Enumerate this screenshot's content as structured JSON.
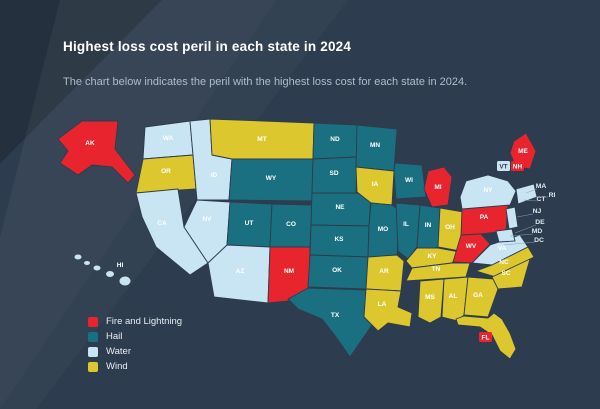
{
  "title": "Highest loss cost peril in each state in 2024",
  "subtitle": "The chart below indicates the peril with the highest loss cost for each state in 2024.",
  "colors": {
    "background": "#2d3c4e",
    "fire": "#e8252f",
    "hail": "#1a7080",
    "water": "#c9e4f2",
    "wind": "#ddc72e",
    "title_text": "#ffffff",
    "subtitle_text": "#aebdcb",
    "state_label_text": "#ffffff",
    "offmap_label_text": "#dfe8f0"
  },
  "legend": {
    "items": [
      {
        "label": "Fire and Lightning",
        "key": "fire"
      },
      {
        "label": "Hail",
        "key": "hail"
      },
      {
        "label": "Water",
        "key": "water"
      },
      {
        "label": "Wind",
        "key": "wind"
      }
    ]
  },
  "chart_data": {
    "type": "choropleth_map",
    "title": "Highest loss cost peril in each state in 2024",
    "subtitle": "The chart below indicates the peril with the highest loss cost for each state in 2024.",
    "legend_position": "bottom-left",
    "categories": {
      "fire": {
        "label": "Fire and Lightning",
        "color": "#e8252f"
      },
      "hail": {
        "label": "Hail",
        "color": "#1a7080"
      },
      "water": {
        "label": "Water",
        "color": "#c9e4f2"
      },
      "wind": {
        "label": "Wind",
        "color": "#ddc72e"
      }
    },
    "states": [
      {
        "id": "AK",
        "label": "AK",
        "category": "fire"
      },
      {
        "id": "HI",
        "label": "HI",
        "category": "water"
      },
      {
        "id": "WA",
        "label": "WA",
        "category": "water"
      },
      {
        "id": "OR",
        "label": "OR",
        "category": "wind"
      },
      {
        "id": "CA",
        "label": "CA",
        "category": "water"
      },
      {
        "id": "ID",
        "label": "ID",
        "category": "water"
      },
      {
        "id": "NV",
        "label": "NV",
        "category": "water"
      },
      {
        "id": "UT",
        "label": "UT",
        "category": "hail"
      },
      {
        "id": "AZ",
        "label": "AZ",
        "category": "water"
      },
      {
        "id": "MT",
        "label": "MT",
        "category": "wind"
      },
      {
        "id": "WY",
        "label": "WY",
        "category": "hail"
      },
      {
        "id": "CO",
        "label": "CO",
        "category": "hail"
      },
      {
        "id": "NM",
        "label": "NM",
        "category": "fire"
      },
      {
        "id": "ND",
        "label": "ND",
        "category": "hail"
      },
      {
        "id": "SD",
        "label": "SD",
        "category": "hail"
      },
      {
        "id": "NE",
        "label": "NE",
        "category": "hail"
      },
      {
        "id": "KS",
        "label": "KS",
        "category": "hail"
      },
      {
        "id": "OK",
        "label": "OK",
        "category": "hail"
      },
      {
        "id": "TX",
        "label": "TX",
        "category": "hail"
      },
      {
        "id": "MN",
        "label": "MN",
        "category": "hail"
      },
      {
        "id": "IA",
        "label": "IA",
        "category": "wind"
      },
      {
        "id": "MO",
        "label": "MO",
        "category": "hail"
      },
      {
        "id": "AR",
        "label": "AR",
        "category": "wind"
      },
      {
        "id": "LA",
        "label": "LA",
        "category": "wind"
      },
      {
        "id": "WI",
        "label": "WI",
        "category": "hail"
      },
      {
        "id": "IL",
        "label": "IL",
        "category": "hail"
      },
      {
        "id": "IN",
        "label": "IN",
        "category": "hail"
      },
      {
        "id": "MI",
        "label": "MI",
        "category": "fire"
      },
      {
        "id": "OH",
        "label": "OH",
        "category": "wind"
      },
      {
        "id": "KY",
        "label": "KY",
        "category": "wind"
      },
      {
        "id": "TN",
        "label": "TN",
        "category": "wind"
      },
      {
        "id": "MS",
        "label": "MS",
        "category": "wind"
      },
      {
        "id": "AL",
        "label": "AL",
        "category": "wind"
      },
      {
        "id": "GA",
        "label": "GA",
        "category": "wind"
      },
      {
        "id": "FL",
        "label": "FL",
        "category": "wind"
      },
      {
        "id": "PA",
        "label": "PA",
        "category": "fire"
      },
      {
        "id": "NY",
        "label": "NY",
        "category": "water"
      },
      {
        "id": "WV",
        "label": "WV",
        "category": "fire"
      },
      {
        "id": "VA",
        "label": "VA",
        "category": "water"
      },
      {
        "id": "NC",
        "label": "NC",
        "category": "wind"
      },
      {
        "id": "SC",
        "label": "SC",
        "category": "wind"
      },
      {
        "id": "ME",
        "label": "ME",
        "category": "fire"
      },
      {
        "id": "VT",
        "label": "VT",
        "category": "water"
      },
      {
        "id": "NH",
        "label": "NH",
        "category": "fire"
      },
      {
        "id": "MA",
        "label": "MA",
        "category": "water"
      },
      {
        "id": "RI",
        "label": "RI",
        "category": "water"
      },
      {
        "id": "CT",
        "label": "CT",
        "category": "water"
      },
      {
        "id": "NJ",
        "label": "NJ",
        "category": "water"
      },
      {
        "id": "DE",
        "label": "DE",
        "category": "water"
      },
      {
        "id": "MD",
        "label": "MD",
        "category": "water"
      },
      {
        "id": "DC",
        "label": "DC",
        "category": "water"
      }
    ]
  }
}
